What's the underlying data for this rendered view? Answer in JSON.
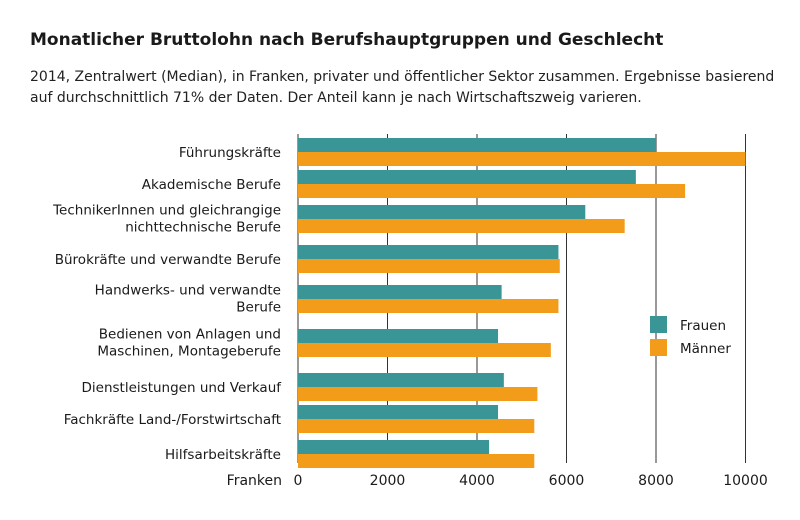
{
  "title": "Monatlicher Bruttolohn nach Berufshauptgruppen und Geschlecht",
  "subtitle": "2014, Zentralwert (Median), in Franken, privater und öffentlicher Sektor zusammen. Ergebnisse basierend auf durchschnittlich 71% der Daten. Der Anteil kann je nach Wirtschaftszweig varieren.",
  "colors": {
    "frauen": "#3a9696",
    "maenner": "#f39c1a",
    "grid": "#333333"
  },
  "chart_data": {
    "type": "bar",
    "orientation": "horizontal",
    "title": "Monatlicher Bruttolohn nach Berufshauptgruppen und Geschlecht",
    "xlabel": "Franken",
    "xlim": [
      0,
      10000
    ],
    "xticks": [
      "0",
      "2000",
      "4000",
      "6000",
      "8000",
      "10000"
    ],
    "xtick_values": [
      0,
      2000,
      4000,
      6000,
      8000,
      10000
    ],
    "legend_position": "right",
    "categories": [
      [
        "Führungskräfte"
      ],
      [
        "Akademische Berufe"
      ],
      [
        "TechnikerInnen und gleichrangige",
        "nichttechnische Berufe"
      ],
      [
        "Bürokräfte und verwandte Berufe"
      ],
      [
        "Handwerks- und verwandte",
        "Berufe"
      ],
      [
        "Bedienen von Anlagen und",
        "Maschinen, Montageberufe"
      ],
      [
        "Dienstleistungen und Verkauf"
      ],
      [
        "Fachkräfte Land-/Forstwirtschaft"
      ],
      [
        "Hilfsarbeitskräfte"
      ]
    ],
    "series": [
      {
        "name": "Frauen",
        "values": [
          8000,
          7550,
          6420,
          5820,
          4550,
          4470,
          4600,
          4470,
          4270
        ]
      },
      {
        "name": "Männer",
        "values": [
          10000,
          8650,
          7300,
          5850,
          5820,
          5650,
          5350,
          5280,
          5280
        ]
      }
    ]
  }
}
